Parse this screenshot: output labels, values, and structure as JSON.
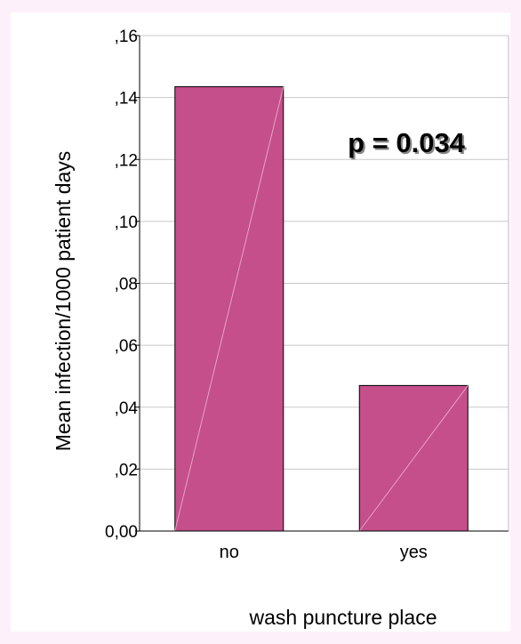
{
  "chart_data": {
    "type": "bar",
    "categories": [
      "no",
      "yes"
    ],
    "values": [
      0.1435,
      0.047
    ],
    "xlabel": "wash puncture place",
    "ylabel": "Mean infection/1000 patient days",
    "ylim": [
      0,
      0.16
    ],
    "yticks": [
      {
        "value": 0.0,
        "label": "0,00"
      },
      {
        "value": 0.02,
        "label": ",02"
      },
      {
        "value": 0.04,
        "label": ",04"
      },
      {
        "value": 0.06,
        "label": ",06"
      },
      {
        "value": 0.08,
        "label": ",08"
      },
      {
        "value": 0.1,
        "label": ",10"
      },
      {
        "value": 0.12,
        "label": ",12"
      },
      {
        "value": 0.14,
        "label": ",14"
      },
      {
        "value": 0.16,
        "label": ",16"
      }
    ],
    "annotation": "p = 0.034",
    "grid": true,
    "bar_color": "#c44f8a"
  }
}
